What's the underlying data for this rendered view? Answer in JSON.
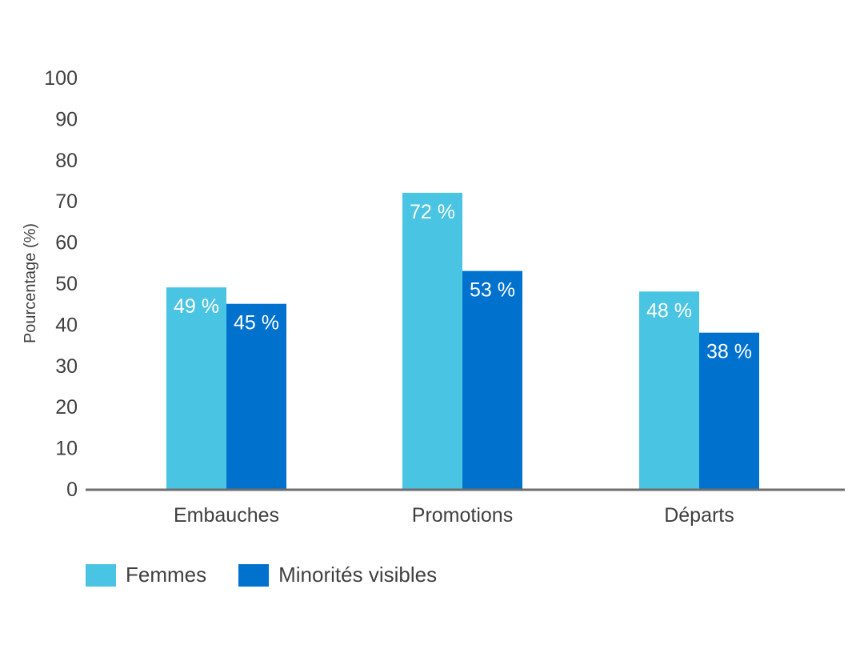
{
  "chart_data": {
    "type": "bar",
    "title": "",
    "xlabel": "",
    "ylabel": "Pourcentage (%)",
    "ylim": [
      0,
      100
    ],
    "yticks": [
      0,
      10,
      20,
      30,
      40,
      50,
      60,
      70,
      80,
      90,
      100
    ],
    "categories": [
      "Embauches",
      "Promotions",
      "Départs"
    ],
    "series": [
      {
        "name": "Femmes",
        "color": "#4AC4E3",
        "values": [
          49,
          72,
          48
        ],
        "labels": [
          "49 %",
          "72 %",
          "48 %"
        ]
      },
      {
        "name": "Minorités visibles",
        "color": "#0072CE",
        "values": [
          45,
          53,
          38
        ],
        "labels": [
          "45 %",
          "53 %",
          "38 %"
        ]
      }
    ],
    "grid": false,
    "legend_position": "bottom-left",
    "axis_color": "#6e6e6e"
  }
}
